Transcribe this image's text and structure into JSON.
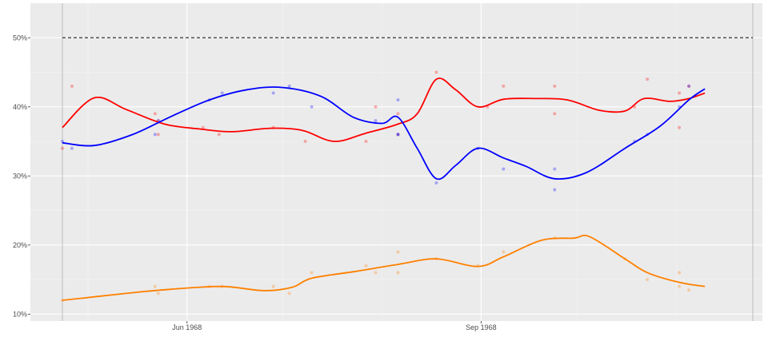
{
  "chart_data": {
    "type": "scatter",
    "title": "",
    "xlabel": "",
    "ylabel": "",
    "x_range": [
      "1968-04-13",
      "1968-11-28"
    ],
    "ylim": [
      9,
      55
    ],
    "y_ticks": [
      {
        "value": 10,
        "label": "10%"
      },
      {
        "value": 20,
        "label": "20%"
      },
      {
        "value": 30,
        "label": "30%"
      },
      {
        "value": 40,
        "label": "40%"
      },
      {
        "value": 50,
        "label": "50%"
      }
    ],
    "x_ticks": [
      {
        "date": "1968-06-01",
        "label": "Jun 1968"
      },
      {
        "date": "1968-09-01",
        "label": "Sep 1968"
      }
    ],
    "x_minor_gridlines": [
      "1968-05-01",
      "1968-07-01",
      "1968-08-01",
      "1968-10-01",
      "1968-11-01"
    ],
    "grid": true,
    "background": "#ebebeb",
    "reference_line": {
      "value": 50,
      "style": "dashed",
      "color": "#333333"
    },
    "vertical_lines": [
      "1968-04-23",
      "1968-11-25"
    ],
    "series": [
      {
        "color": "#ff0000",
        "points": [
          [
            "1968-04-23",
            34
          ],
          [
            "1968-04-26",
            43
          ],
          [
            "1968-05-22",
            39
          ],
          [
            "1968-05-23",
            36
          ],
          [
            "1968-05-23",
            38
          ],
          [
            "1968-06-06",
            37
          ],
          [
            "1968-06-11",
            36
          ],
          [
            "1968-06-28",
            37
          ],
          [
            "1968-07-08",
            35
          ],
          [
            "1968-07-27",
            35
          ],
          [
            "1968-07-30",
            40
          ],
          [
            "1968-08-06",
            36
          ],
          [
            "1968-08-06",
            39
          ],
          [
            "1968-08-18",
            45
          ],
          [
            "1968-09-03",
            40
          ],
          [
            "1968-09-08",
            43
          ],
          [
            "1968-09-24",
            39
          ],
          [
            "1968-09-24",
            43
          ],
          [
            "1968-10-19",
            40
          ],
          [
            "1968-10-23",
            44
          ],
          [
            "1968-11-02",
            42
          ],
          [
            "1968-11-02",
            37
          ],
          [
            "1968-11-05",
            43
          ]
        ],
        "trend": [
          [
            "1968-04-23",
            37.0
          ],
          [
            "1968-05-03",
            41.3
          ],
          [
            "1968-05-13",
            39.6
          ],
          [
            "1968-05-25",
            37.5
          ],
          [
            "1968-06-05",
            36.8
          ],
          [
            "1968-06-15",
            36.4
          ],
          [
            "1968-06-27",
            36.9
          ],
          [
            "1968-07-07",
            36.6
          ],
          [
            "1968-07-17",
            35.0
          ],
          [
            "1968-07-27",
            36.2
          ],
          [
            "1968-08-06",
            37.5
          ],
          [
            "1968-08-12",
            39.0
          ],
          [
            "1968-08-18",
            44.0
          ],
          [
            "1968-08-24",
            42.5
          ],
          [
            "1968-08-31",
            40.0
          ],
          [
            "1968-09-08",
            41.1
          ],
          [
            "1968-09-18",
            41.2
          ],
          [
            "1968-09-28",
            41.0
          ],
          [
            "1968-10-08",
            39.5
          ],
          [
            "1968-10-16",
            39.4
          ],
          [
            "1968-10-22",
            41.2
          ],
          [
            "1968-10-30",
            40.8
          ],
          [
            "1968-11-05",
            41.2
          ],
          [
            "1968-11-10",
            42.0
          ]
        ]
      },
      {
        "color": "#0000ff",
        "points": [
          [
            "1968-04-23",
            35
          ],
          [
            "1968-04-26",
            34
          ],
          [
            "1968-05-22",
            36
          ],
          [
            "1968-05-23",
            38
          ],
          [
            "1968-06-08",
            41
          ],
          [
            "1968-06-12",
            42
          ],
          [
            "1968-06-28",
            42
          ],
          [
            "1968-07-03",
            43
          ],
          [
            "1968-07-10",
            40
          ],
          [
            "1968-07-30",
            38
          ],
          [
            "1968-08-06",
            41
          ],
          [
            "1968-08-06",
            36
          ],
          [
            "1968-08-06",
            36
          ],
          [
            "1968-08-18",
            29
          ],
          [
            "1968-08-31",
            34
          ],
          [
            "1968-09-08",
            31
          ],
          [
            "1968-09-24",
            31
          ],
          [
            "1968-09-24",
            28
          ],
          [
            "1968-10-19",
            35
          ],
          [
            "1968-10-23",
            36
          ],
          [
            "1968-11-02",
            40
          ],
          [
            "1968-11-05",
            43
          ]
        ],
        "trend": [
          [
            "1968-04-23",
            34.8
          ],
          [
            "1968-05-03",
            34.4
          ],
          [
            "1968-05-15",
            36.0
          ],
          [
            "1968-05-27",
            38.6
          ],
          [
            "1968-06-08",
            41.0
          ],
          [
            "1968-06-20",
            42.5
          ],
          [
            "1968-07-01",
            42.8
          ],
          [
            "1968-07-13",
            41.5
          ],
          [
            "1968-07-23",
            38.5
          ],
          [
            "1968-08-01",
            37.6
          ],
          [
            "1968-08-06",
            38.5
          ],
          [
            "1968-08-12",
            34.0
          ],
          [
            "1968-08-18",
            29.6
          ],
          [
            "1968-08-24",
            31.5
          ],
          [
            "1968-08-31",
            34.0
          ],
          [
            "1968-09-08",
            32.6
          ],
          [
            "1968-09-15",
            31.4
          ],
          [
            "1968-09-24",
            29.6
          ],
          [
            "1968-10-04",
            30.5
          ],
          [
            "1968-10-16",
            34.0
          ],
          [
            "1968-10-27",
            37.2
          ],
          [
            "1968-11-05",
            41.0
          ],
          [
            "1968-11-10",
            42.6
          ]
        ]
      },
      {
        "color": "#ff8000",
        "points": [
          [
            "1968-04-23",
            12
          ],
          [
            "1968-05-22",
            14
          ],
          [
            "1968-05-23",
            13
          ],
          [
            "1968-06-08",
            14
          ],
          [
            "1968-06-12",
            14
          ],
          [
            "1968-06-28",
            14
          ],
          [
            "1968-07-03",
            13
          ],
          [
            "1968-07-10",
            16
          ],
          [
            "1968-07-27",
            17
          ],
          [
            "1968-07-30",
            16
          ],
          [
            "1968-08-06",
            16
          ],
          [
            "1968-08-06",
            19
          ],
          [
            "1968-08-18",
            18
          ],
          [
            "1968-08-31",
            17
          ],
          [
            "1968-09-08",
            19
          ],
          [
            "1968-09-24",
            21
          ],
          [
            "1968-10-16",
            18
          ],
          [
            "1968-10-23",
            15
          ],
          [
            "1968-11-02",
            14
          ],
          [
            "1968-11-02",
            16
          ],
          [
            "1968-11-05",
            13.5
          ]
        ],
        "trend": [
          [
            "1968-04-23",
            12.0
          ],
          [
            "1968-05-03",
            12.5
          ],
          [
            "1968-05-15",
            13.1
          ],
          [
            "1968-05-27",
            13.6
          ],
          [
            "1968-06-12",
            14.0
          ],
          [
            "1968-06-25",
            13.4
          ],
          [
            "1968-07-04",
            13.9
          ],
          [
            "1968-07-10",
            15.2
          ],
          [
            "1968-07-24",
            16.2
          ],
          [
            "1968-08-06",
            17.2
          ],
          [
            "1968-08-18",
            18.0
          ],
          [
            "1968-08-31",
            16.9
          ],
          [
            "1968-09-08",
            18.3
          ],
          [
            "1968-09-20",
            20.7
          ],
          [
            "1968-09-30",
            21.0
          ],
          [
            "1968-10-05",
            21.2
          ],
          [
            "1968-10-16",
            18.0
          ],
          [
            "1968-10-23",
            16.0
          ],
          [
            "1968-11-02",
            14.6
          ],
          [
            "1968-11-10",
            14.0
          ]
        ]
      }
    ]
  }
}
